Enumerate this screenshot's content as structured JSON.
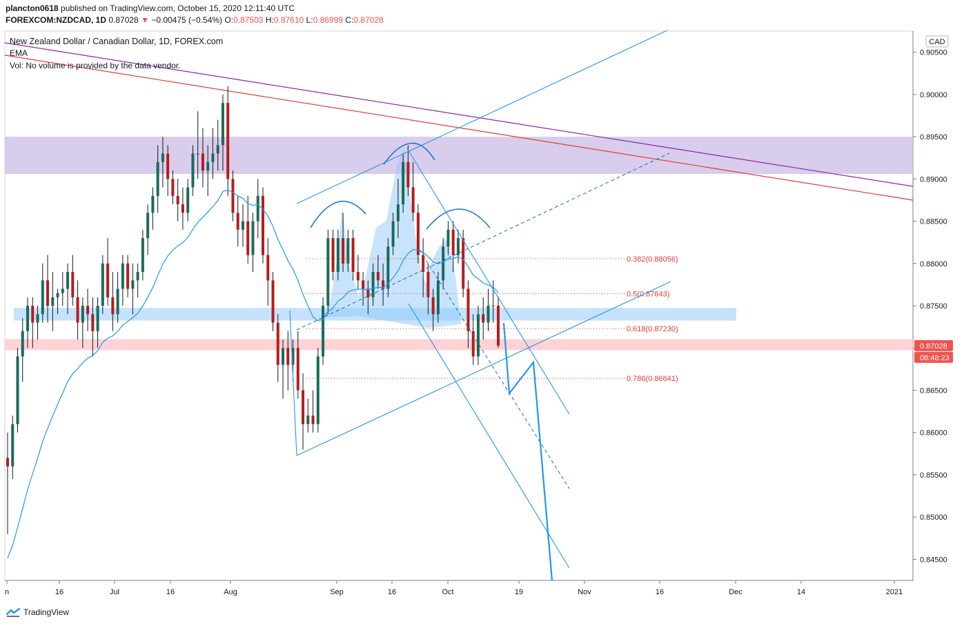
{
  "header": {
    "author": "plancton0618",
    "published": "published on TradingView.com, October 15, 2020 12:11:40 UTC",
    "symbol": "FOREXCOM:NZDCAD, 1D",
    "last": "0.87028",
    "arrow": "▼",
    "change": "−0.00475 (−0.54%)",
    "o_label": "O:",
    "o_value": "0.87503",
    "h_label": "H:",
    "h_value": "0.87610",
    "l_label": "L:",
    "l_value": "0.86999",
    "c_label": "C:",
    "c_value": "0.87028"
  },
  "legend": {
    "title": "New Zealand Dollar / Canadian Dollar, 1D, FOREX.com",
    "ema": "EMA",
    "vol": "Vol: No volume is provided by the data vendor."
  },
  "footer": {
    "brand": "TradingView"
  },
  "colors": {
    "up": "#26a69a",
    "down": "#ef5350",
    "wick": "#131722",
    "bull_body": "#1b6b5b",
    "bear_body": "#b71c1c",
    "ema": "#2196f3",
    "trend": "#2196f3",
    "purple_zone": "#d1c4e9",
    "blue_zone": "#bbdefb",
    "red_zone": "#ffcdd2",
    "purple_line": "#8e24aa",
    "red_line": "#e53935",
    "fib": "#e53935"
  },
  "chart_data": {
    "type": "candlestick",
    "currency": "CAD",
    "y_ticks": [
      "0.90500",
      "0.90000",
      "0.89500",
      "0.89000",
      "0.88500",
      "0.88000",
      "0.87500",
      "0.87000",
      "0.86500",
      "0.86000",
      "0.85500",
      "0.85000",
      "0.84500"
    ],
    "ylim": [
      0.8425,
      0.9075
    ],
    "x_ticks": [
      "n",
      "16",
      "Jul",
      "16",
      "Aug",
      "Sep",
      "16",
      "Oct",
      "19",
      "Nov",
      "16",
      "Dec",
      "14",
      "2021"
    ],
    "price_label": "0.87028",
    "countdown_label": "08:48:23",
    "fib_levels": [
      {
        "label": "0.382(0.88056)",
        "value": 0.88056
      },
      {
        "label": "0.5(0.87643)",
        "value": 0.87643
      },
      {
        "label": "0.618(0.87230)",
        "value": 0.8723
      },
      {
        "label": "0.786(0.86641)",
        "value": 0.86641
      }
    ],
    "zones": [
      {
        "name": "resistance",
        "from": 0.8906,
        "to": 0.895
      },
      {
        "name": "support",
        "from": 0.87325,
        "to": 0.87475
      },
      {
        "name": "current",
        "from": 0.86975,
        "to": 0.87105
      }
    ],
    "candles": [
      [
        0.857,
        0.86,
        0.848,
        0.856
      ],
      [
        0.856,
        0.862,
        0.8545,
        0.861
      ],
      [
        0.861,
        0.87,
        0.86,
        0.869
      ],
      [
        0.869,
        0.8735,
        0.866,
        0.872
      ],
      [
        0.872,
        0.876,
        0.87,
        0.875
      ],
      [
        0.875,
        0.876,
        0.87,
        0.873
      ],
      [
        0.873,
        0.875,
        0.871,
        0.874
      ],
      [
        0.874,
        0.88,
        0.873,
        0.878
      ],
      [
        0.878,
        0.881,
        0.873,
        0.875
      ],
      [
        0.875,
        0.879,
        0.872,
        0.876
      ],
      [
        0.876,
        0.877,
        0.874,
        0.8765
      ],
      [
        0.8765,
        0.879,
        0.875,
        0.877
      ],
      [
        0.877,
        0.88,
        0.874,
        0.879
      ],
      [
        0.879,
        0.881,
        0.875,
        0.876
      ],
      [
        0.876,
        0.878,
        0.871,
        0.873
      ],
      [
        0.873,
        0.876,
        0.87,
        0.875
      ],
      [
        0.875,
        0.877,
        0.872,
        0.874
      ],
      [
        0.874,
        0.876,
        0.869,
        0.872
      ],
      [
        0.872,
        0.876,
        0.87,
        0.875
      ],
      [
        0.875,
        0.881,
        0.874,
        0.88
      ],
      [
        0.88,
        0.883,
        0.875,
        0.876
      ],
      [
        0.876,
        0.879,
        0.872,
        0.874
      ],
      [
        0.874,
        0.879,
        0.873,
        0.877
      ],
      [
        0.877,
        0.881,
        0.875,
        0.88
      ],
      [
        0.88,
        0.881,
        0.876,
        0.877
      ],
      [
        0.877,
        0.88,
        0.874,
        0.878
      ],
      [
        0.878,
        0.88,
        0.876,
        0.879
      ],
      [
        0.879,
        0.884,
        0.878,
        0.883
      ],
      [
        0.883,
        0.887,
        0.881,
        0.886
      ],
      [
        0.886,
        0.889,
        0.884,
        0.888
      ],
      [
        0.888,
        0.894,
        0.886,
        0.892
      ],
      [
        0.892,
        0.895,
        0.889,
        0.893
      ],
      [
        0.893,
        0.894,
        0.888,
        0.89
      ],
      [
        0.89,
        0.891,
        0.887,
        0.888
      ],
      [
        0.888,
        0.89,
        0.885,
        0.887
      ],
      [
        0.887,
        0.889,
        0.884,
        0.886
      ],
      [
        0.886,
        0.89,
        0.885,
        0.889
      ],
      [
        0.889,
        0.894,
        0.888,
        0.893
      ],
      [
        0.893,
        0.898,
        0.89,
        0.893
      ],
      [
        0.893,
        0.896,
        0.889,
        0.891
      ],
      [
        0.891,
        0.894,
        0.888,
        0.892
      ],
      [
        0.892,
        0.896,
        0.89,
        0.893
      ],
      [
        0.893,
        0.897,
        0.891,
        0.894
      ],
      [
        0.894,
        0.9,
        0.891,
        0.899
      ],
      [
        0.899,
        0.901,
        0.888,
        0.89
      ],
      [
        0.89,
        0.891,
        0.885,
        0.886
      ],
      [
        0.886,
        0.888,
        0.882,
        0.884
      ],
      [
        0.884,
        0.887,
        0.882,
        0.885
      ],
      [
        0.885,
        0.888,
        0.88,
        0.881
      ],
      [
        0.881,
        0.886,
        0.879,
        0.885
      ],
      [
        0.885,
        0.89,
        0.883,
        0.888
      ],
      [
        0.888,
        0.889,
        0.88,
        0.881
      ],
      [
        0.881,
        0.883,
        0.875,
        0.878
      ],
      [
        0.878,
        0.879,
        0.872,
        0.873
      ],
      [
        0.873,
        0.874,
        0.866,
        0.868
      ],
      [
        0.868,
        0.871,
        0.864,
        0.87
      ],
      [
        0.87,
        0.872,
        0.865,
        0.868
      ],
      [
        0.868,
        0.871,
        0.866,
        0.87
      ],
      [
        0.87,
        0.872,
        0.864,
        0.865
      ],
      [
        0.865,
        0.867,
        0.858,
        0.861
      ],
      [
        0.861,
        0.864,
        0.86,
        0.862
      ],
      [
        0.862,
        0.865,
        0.86,
        0.861
      ],
      [
        0.861,
        0.87,
        0.86,
        0.869
      ],
      [
        0.869,
        0.876,
        0.868,
        0.875
      ],
      [
        0.875,
        0.884,
        0.874,
        0.883
      ],
      [
        0.883,
        0.884,
        0.878,
        0.879
      ],
      [
        0.879,
        0.884,
        0.878,
        0.883
      ],
      [
        0.883,
        0.886,
        0.879,
        0.88
      ],
      [
        0.88,
        0.884,
        0.879,
        0.883
      ],
      [
        0.883,
        0.884,
        0.878,
        0.879
      ],
      [
        0.879,
        0.881,
        0.877,
        0.878
      ],
      [
        0.878,
        0.879,
        0.875,
        0.877
      ],
      [
        0.877,
        0.878,
        0.874,
        0.876
      ],
      [
        0.876,
        0.88,
        0.875,
        0.879
      ],
      [
        0.879,
        0.881,
        0.877,
        0.878
      ],
      [
        0.878,
        0.88,
        0.875,
        0.877
      ],
      [
        0.877,
        0.883,
        0.876,
        0.882
      ],
      [
        0.882,
        0.886,
        0.881,
        0.885
      ],
      [
        0.885,
        0.89,
        0.883,
        0.887
      ],
      [
        0.887,
        0.893,
        0.886,
        0.892
      ],
      [
        0.892,
        0.894,
        0.888,
        0.889
      ],
      [
        0.889,
        0.892,
        0.885,
        0.886
      ],
      [
        0.886,
        0.887,
        0.88,
        0.881
      ],
      [
        0.881,
        0.883,
        0.876,
        0.879
      ],
      [
        0.879,
        0.88,
        0.874,
        0.876
      ],
      [
        0.876,
        0.877,
        0.872,
        0.874
      ],
      [
        0.874,
        0.879,
        0.873,
        0.878
      ],
      [
        0.878,
        0.883,
        0.877,
        0.882
      ],
      [
        0.882,
        0.885,
        0.881,
        0.884
      ],
      [
        0.884,
        0.885,
        0.879,
        0.881
      ],
      [
        0.881,
        0.884,
        0.88,
        0.883
      ],
      [
        0.883,
        0.884,
        0.876,
        0.877
      ],
      [
        0.877,
        0.878,
        0.87,
        0.872
      ],
      [
        0.872,
        0.874,
        0.868,
        0.869
      ],
      [
        0.869,
        0.875,
        0.868,
        0.874
      ],
      [
        0.874,
        0.876,
        0.871,
        0.873
      ],
      [
        0.873,
        0.877,
        0.872,
        0.875
      ],
      [
        0.875,
        0.878,
        0.873,
        0.875
      ],
      [
        0.875,
        0.8761,
        0.87,
        0.87028
      ]
    ]
  }
}
